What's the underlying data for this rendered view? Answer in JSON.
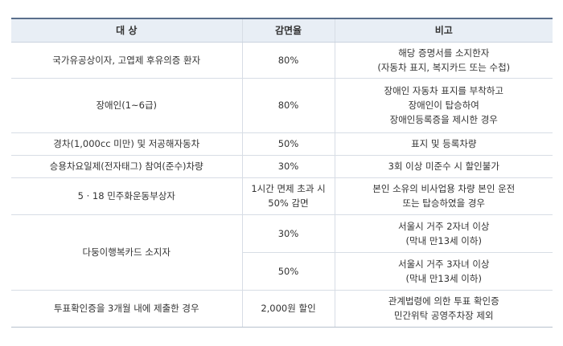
{
  "table": {
    "headers": [
      "대 상",
      "감면율",
      "비고"
    ],
    "rows": {
      "r0": {
        "target": "국가유공상이자, 고엽제 후유의증 환자",
        "rate": "80%",
        "note": [
          "해당 증명서를 소지한자",
          "(자동차 표지, 복지카드 또는 수첩)"
        ]
      },
      "r1": {
        "target": "장애인(1~6급)",
        "rate": "80%",
        "note": [
          "장애인 자동차 표지를 부착하고",
          "장애인이 탑승하여",
          "장애인등록증을 제시한 경우"
        ]
      },
      "r2": {
        "target": "경차(1,000cc 미만) 및 저공해자동차",
        "rate": "50%",
        "note": [
          "표지 및 등록차량"
        ]
      },
      "r3": {
        "target": "승용차요일제(전자태그) 참여(준수)차량",
        "rate": "30%",
        "note": [
          "3회 이상 미준수 시 할인불가"
        ]
      },
      "r4": {
        "target": "5 · 18 민주화운동부상자",
        "rate": [
          "1시간 면제 초과 시",
          "50% 감면"
        ],
        "note": [
          "본인 소유의 비사업용 차량 본인 운전",
          "또는 탑승하였을 경우"
        ]
      },
      "r5": {
        "target": "다둥이행복카드 소지자",
        "rate_a": "30%",
        "note_a": [
          "서울시 거주 2자녀 이상",
          "(막내 만13세 이하)"
        ],
        "rate_b": "50%",
        "note_b": [
          "서울시 거주 3자녀 이상",
          "(막내 만13세 이하)"
        ]
      },
      "r6": {
        "target": "투표확인증을 3개월 내에 제출한 경우",
        "rate": "2,000원 할인",
        "note": [
          "관계법령에 의한 투표 확인증",
          "민간위탁 공영주차장 제외"
        ]
      }
    }
  }
}
